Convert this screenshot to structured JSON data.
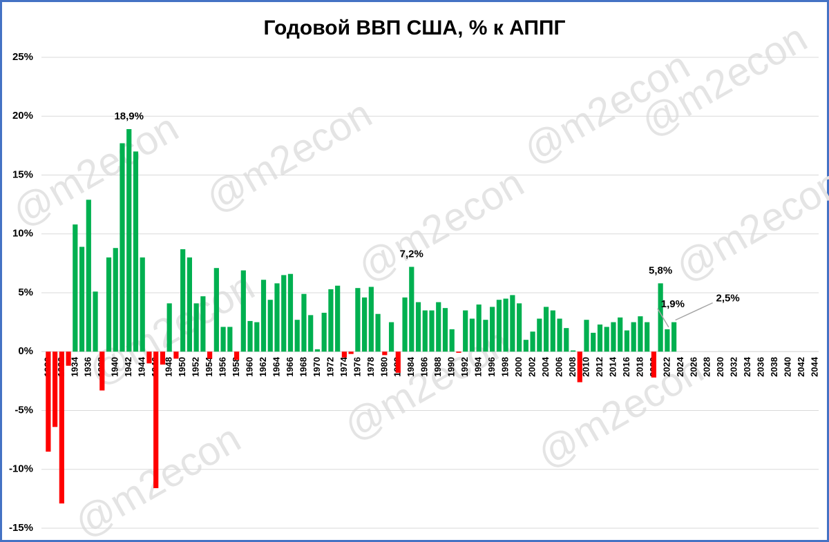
{
  "chart_data": {
    "type": "bar",
    "title": "Годовой ВВП США, % к АППГ",
    "watermark": "@m2econ",
    "categories": [
      "1930",
      null,
      "1932",
      null,
      "1934",
      null,
      "1936",
      null,
      "1938",
      null,
      "1940",
      null,
      "1942",
      null,
      "1944",
      null,
      "1946",
      null,
      "1948",
      null,
      "1950",
      null,
      "1952",
      null,
      "1954",
      null,
      "1956",
      null,
      "1958",
      null,
      "1960",
      null,
      "1962",
      null,
      "1964",
      null,
      "1966",
      null,
      "1968",
      null,
      "1970",
      null,
      "1972",
      null,
      "1974",
      null,
      "1976",
      null,
      "1978",
      null,
      "1980",
      null,
      "1982",
      null,
      "1984",
      null,
      "1986",
      null,
      "1988",
      null,
      "1990",
      null,
      "1992",
      null,
      "1994",
      null,
      "1996",
      null,
      "1998",
      null,
      "2000",
      null,
      "2002",
      null,
      "2004",
      null,
      "2006",
      null,
      "2008",
      null,
      "2010",
      null,
      "2012",
      null,
      "2014",
      null,
      "2016",
      null,
      "2018",
      null,
      "2020",
      null,
      "2022",
      null,
      "2024",
      null,
      "2026",
      null,
      "2028",
      null,
      "2030",
      null,
      "2032",
      null,
      "2034",
      null,
      "2036",
      null,
      "2038",
      null,
      "2040",
      null,
      "2042",
      null,
      "2044"
    ],
    "values": [
      -8.5,
      -6.4,
      -12.9,
      -1.2,
      10.8,
      8.9,
      12.9,
      5.1,
      -3.3,
      8.0,
      8.8,
      17.7,
      18.9,
      17.0,
      8.0,
      -1.0,
      -11.6,
      -1.1,
      4.1,
      -0.6,
      8.7,
      8.0,
      4.1,
      4.7,
      -0.6,
      7.1,
      2.1,
      2.1,
      -0.7,
      6.9,
      2.6,
      2.5,
      6.1,
      4.4,
      5.8,
      6.5,
      6.6,
      2.7,
      4.9,
      3.1,
      0.2,
      3.3,
      5.3,
      5.6,
      -0.5,
      -0.2,
      5.4,
      4.6,
      5.5,
      3.2,
      -0.3,
      2.5,
      -1.8,
      4.6,
      7.2,
      4.2,
      3.5,
      3.5,
      4.2,
      3.7,
      1.9,
      -0.1,
      3.5,
      2.8,
      4.0,
      2.7,
      3.8,
      4.4,
      4.5,
      4.8,
      4.1,
      1.0,
      1.7,
      2.8,
      3.8,
      3.5,
      2.8,
      2.0,
      0.1,
      -2.6,
      2.7,
      1.6,
      2.3,
      2.1,
      2.5,
      2.9,
      1.8,
      2.5,
      3.0,
      2.5,
      -2.2,
      5.8,
      1.9,
      2.5,
      null,
      null,
      null,
      null,
      null,
      null,
      null,
      null,
      null,
      null,
      null,
      null,
      null,
      null,
      null,
      null,
      null,
      null,
      null,
      null,
      null
    ],
    "value_labels": [
      null,
      null,
      null,
      null,
      null,
      null,
      null,
      null,
      null,
      null,
      null,
      null,
      "18,9%",
      null,
      null,
      null,
      null,
      null,
      null,
      null,
      null,
      null,
      null,
      null,
      null,
      null,
      null,
      null,
      null,
      null,
      null,
      null,
      null,
      null,
      null,
      null,
      null,
      null,
      null,
      null,
      null,
      null,
      null,
      null,
      null,
      null,
      null,
      null,
      null,
      null,
      null,
      null,
      null,
      null,
      "7,2%",
      null,
      null,
      null,
      null,
      null,
      null,
      null,
      null,
      null,
      null,
      null,
      null,
      null,
      null,
      null,
      null,
      null,
      null,
      null,
      null,
      null,
      null,
      null,
      null,
      null,
      null,
      null,
      null,
      null,
      null,
      null,
      null,
      null,
      null,
      null,
      null,
      "5,8%",
      "1,9%",
      "2,5%",
      null,
      null,
      null,
      null,
      null,
      null,
      null,
      null,
      null,
      null,
      null,
      null,
      null,
      null,
      null,
      null,
      null,
      null,
      null,
      null,
      null
    ],
    "color": "#00b050",
    "negative_color": "#ff0000",
    "ylim": [
      -15,
      25
    ],
    "yticks": [
      {
        "value": -15,
        "label": "-15%"
      },
      {
        "value": -10,
        "label": "-10%"
      },
      {
        "value": -5,
        "label": "-5%"
      },
      {
        "value": 0,
        "label": "0%"
      },
      {
        "value": 5,
        "label": "5%"
      },
      {
        "value": 10,
        "label": "10%"
      },
      {
        "value": 15,
        "label": "15%"
      },
      {
        "value": 20,
        "label": "20%"
      },
      {
        "value": 25,
        "label": "25%"
      }
    ],
    "grid": true
  }
}
